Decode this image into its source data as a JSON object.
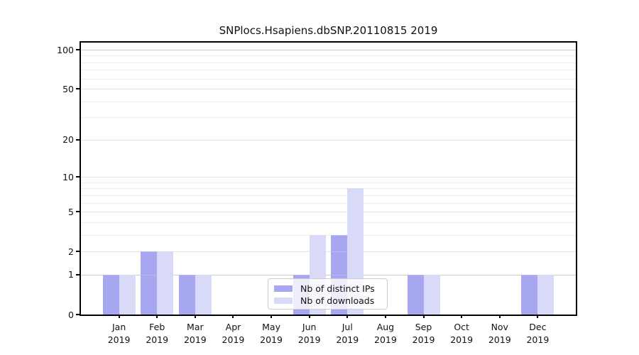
{
  "title": "SNPlocs.Hsapiens.dbSNP.20110815 2019",
  "chart_data": {
    "type": "bar",
    "title": "SNPlocs.Hsapiens.dbSNP.20110815 2019",
    "categories": [
      "Jan 2019",
      "Feb 2019",
      "Mar 2019",
      "Apr 2019",
      "May 2019",
      "Jun 2019",
      "Jul 2019",
      "Aug 2019",
      "Sep 2019",
      "Oct 2019",
      "Nov 2019",
      "Dec 2019"
    ],
    "series": [
      {
        "name": "Nb of distinct IPs",
        "color": "#9b9bef",
        "values": [
          1,
          2,
          1,
          0,
          0,
          1,
          3,
          0,
          1,
          0,
          0,
          1
        ]
      },
      {
        "name": "Nb of downloads",
        "color": "#d4d4f7",
        "values": [
          1,
          2,
          1,
          0,
          0,
          3,
          8,
          0,
          1,
          0,
          0,
          1
        ]
      }
    ],
    "ylabel": "",
    "xlabel": "",
    "y_axis": {
      "scale": "log10(1+x)",
      "range": [
        0,
        100
      ],
      "major_ticks": [
        0,
        1,
        2,
        5,
        10,
        20,
        50,
        100
      ],
      "minor_gridlines": [
        3,
        4,
        6,
        7,
        8,
        9,
        30,
        40,
        60,
        70,
        80,
        90
      ]
    },
    "grid": true,
    "legend": {
      "position": "lower center",
      "entries": [
        "Nb of distinct IPs",
        "Nb of downloads"
      ]
    },
    "colors": {
      "major_grid": "#e4e4e4",
      "emphasis_grid": "#c0c0c0",
      "minor_grid": "#f1f1f1",
      "spine": "#000000",
      "text": "#111111"
    }
  }
}
